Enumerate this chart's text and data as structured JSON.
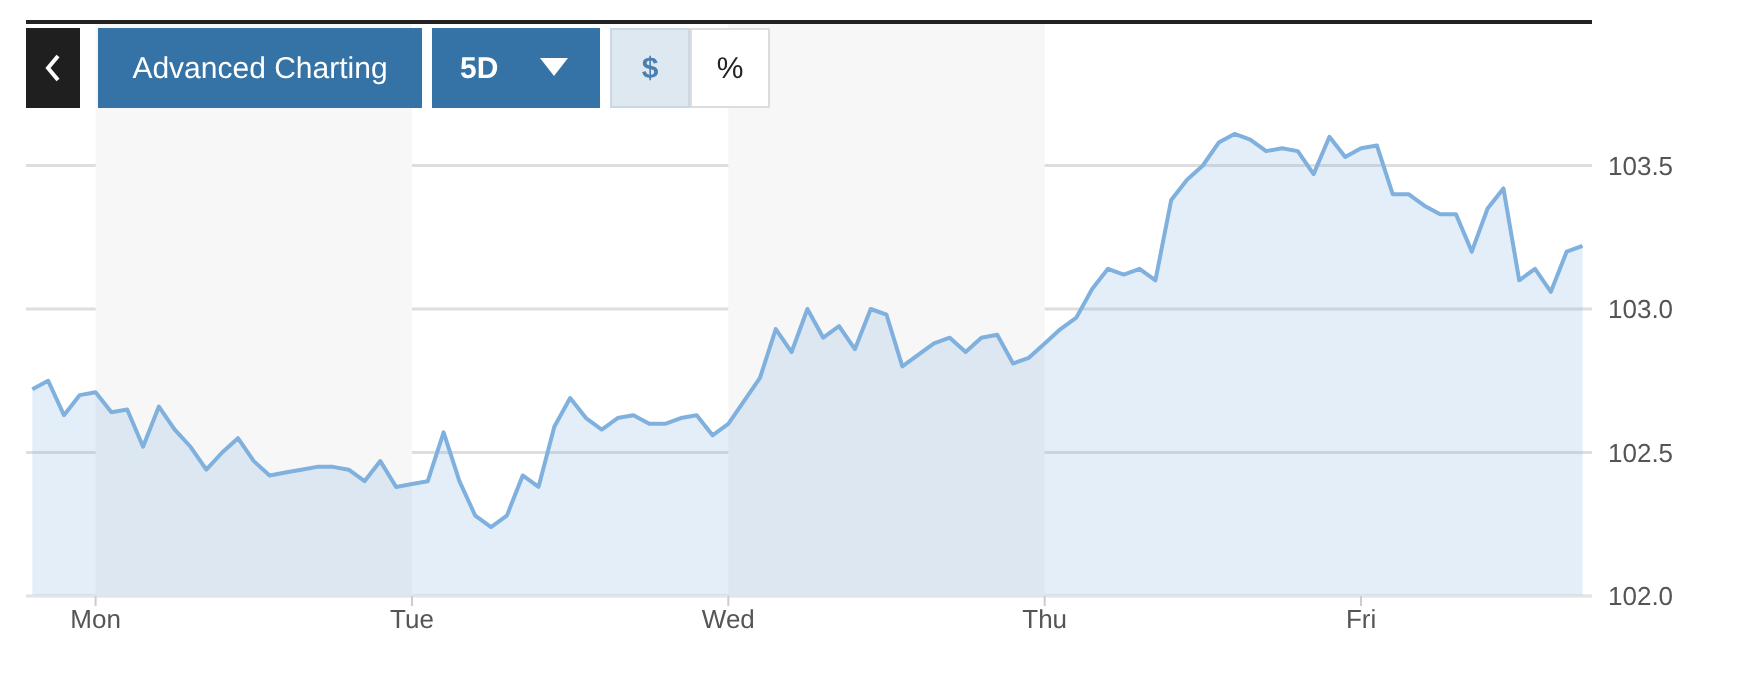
{
  "chart_data": {
    "type": "area",
    "annotations": [
      "Advanced Charting",
      "5D",
      "$",
      "%"
    ],
    "categories": [
      null,
      null,
      null,
      null,
      "Mon",
      null,
      null,
      null,
      null,
      null,
      null,
      null,
      null,
      null,
      null,
      null,
      null,
      null,
      null,
      null,
      null,
      null,
      null,
      null,
      "Tue",
      null,
      null,
      null,
      null,
      null,
      null,
      null,
      null,
      null,
      null,
      null,
      null,
      null,
      null,
      null,
      null,
      null,
      null,
      null,
      "Wed",
      null,
      null,
      null,
      null,
      null,
      null,
      null,
      null,
      null,
      null,
      null,
      null,
      null,
      null,
      null,
      null,
      null,
      null,
      null,
      "Thu",
      null,
      null,
      null,
      null,
      null,
      null,
      null,
      null,
      null,
      null,
      null,
      null,
      null,
      null,
      null,
      null,
      null,
      null,
      null,
      "Fri",
      null,
      null,
      null,
      null,
      null,
      null,
      null,
      null,
      null,
      null,
      null,
      null,
      null,
      null
    ],
    "series": [
      {
        "color": "#7fb0de",
        "values": [
          102.72,
          102.75,
          102.63,
          102.7,
          102.71,
          102.64,
          102.65,
          102.52,
          102.66,
          102.58,
          102.52,
          102.44,
          102.5,
          102.55,
          102.47,
          102.42,
          102.43,
          102.44,
          102.45,
          102.45,
          102.44,
          102.4,
          102.47,
          102.38,
          102.39,
          102.4,
          102.57,
          102.4,
          102.28,
          102.24,
          102.28,
          102.42,
          102.38,
          102.59,
          102.69,
          102.62,
          102.58,
          102.62,
          102.63,
          102.6,
          102.6,
          102.62,
          102.63,
          102.56,
          102.6,
          102.68,
          102.76,
          102.93,
          102.85,
          103.0,
          102.9,
          102.94,
          102.86,
          103.0,
          102.98,
          102.8,
          102.84,
          102.88,
          102.9,
          102.85,
          102.9,
          102.91,
          102.81,
          102.83,
          102.88,
          102.93,
          102.97,
          103.07,
          103.14,
          103.12,
          103.14,
          103.1,
          103.38,
          103.45,
          103.5,
          103.58,
          103.61,
          103.59,
          103.55,
          103.56,
          103.55,
          103.47,
          103.6,
          103.53,
          103.56,
          103.57,
          103.4,
          103.4,
          103.36,
          103.33,
          103.33,
          103.2,
          103.35,
          103.42,
          103.1,
          103.14,
          103.06,
          103.2,
          103.22
        ]
      }
    ],
    "ylim": [
      102,
      104
    ],
    "yticks": [
      {
        "value": 102,
        "label": "102.0"
      },
      {
        "value": 102.5,
        "label": "102.5"
      },
      {
        "value": 103,
        "label": "103.0"
      },
      {
        "value": 103.5,
        "label": "103.5"
      }
    ],
    "bands": [
      {
        "axis": "x",
        "from": "Mon",
        "to": "Tue",
        "color": "#f7f7f7"
      },
      {
        "axis": "x",
        "from": "Wed",
        "to": "Thu",
        "color": "#f7f7f7"
      }
    ],
    "grid": "y"
  }
}
